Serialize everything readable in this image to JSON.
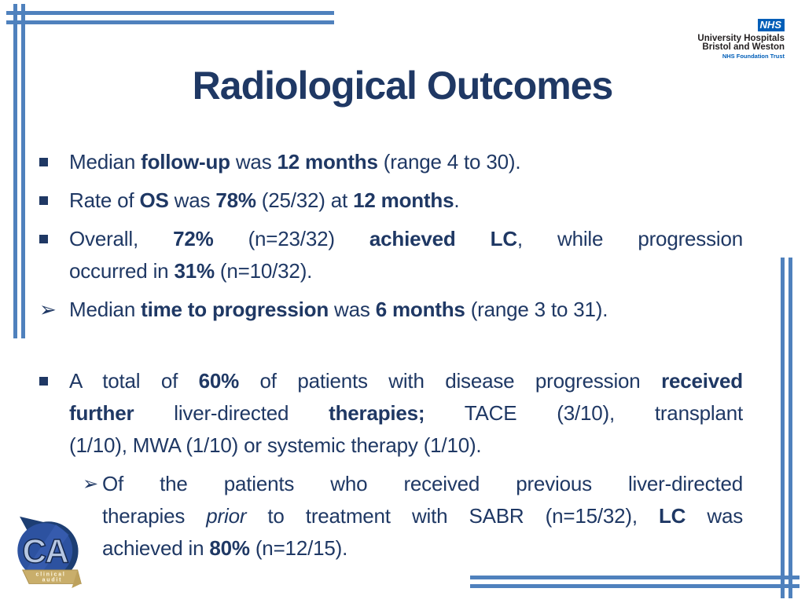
{
  "colors": {
    "text_navy": "#1f3864",
    "line_blue": "#4f81bd",
    "nhs_blue": "#005eb8",
    "ca_gold": "#c9ae6b"
  },
  "nhs_logo": {
    "nhs": "NHS",
    "org_line1": "University Hospitals",
    "org_line2": "Bristol and Weston",
    "trust": "NHS Foundation Trust"
  },
  "title": "Radiological Outcomes",
  "markers": {
    "square": "▪",
    "arrow": "➢"
  },
  "bullets": [
    {
      "marker": "square",
      "level": 1,
      "gap_before": false,
      "lines": [
        [
          {
            "t": "Median "
          },
          {
            "t": "follow-up",
            "b": true
          },
          {
            "t": " was "
          },
          {
            "t": "12 months",
            "b": true
          },
          {
            "t": " (range 4 to 30)."
          }
        ]
      ]
    },
    {
      "marker": "square",
      "level": 1,
      "gap_before": false,
      "lines": [
        [
          {
            "t": "Rate of "
          },
          {
            "t": "OS",
            "b": true
          },
          {
            "t": " was "
          },
          {
            "t": "78%",
            "b": true
          },
          {
            "t": " (25/32) at "
          },
          {
            "t": "12 months",
            "b": true
          },
          {
            "t": "."
          }
        ]
      ]
    },
    {
      "marker": "square",
      "level": 1,
      "gap_before": false,
      "lines": [
        [
          {
            "t": "Overall, "
          },
          {
            "t": "72%",
            "b": true
          },
          {
            "t": " (n=23/32) "
          },
          {
            "t": "achieved LC",
            "b": true
          },
          {
            "t": ", while progression"
          }
        ],
        [
          {
            "t": "occurred in "
          },
          {
            "t": "31%",
            "b": true
          },
          {
            "t": " (n=10/32)."
          }
        ]
      ]
    },
    {
      "marker": "arrow",
      "level": 1,
      "gap_before": false,
      "lines": [
        [
          {
            "t": "Median "
          },
          {
            "t": "time to progression",
            "b": true
          },
          {
            "t": " was "
          },
          {
            "t": "6 months",
            "b": true
          },
          {
            "t": " (range 3 to 31)."
          }
        ]
      ]
    },
    {
      "marker": "square",
      "level": 1,
      "gap_before": true,
      "lines": [
        [
          {
            "t": "A total of "
          },
          {
            "t": "60%",
            "b": true
          },
          {
            "t": " of patients with disease progression "
          },
          {
            "t": "received",
            "b": true
          }
        ],
        [
          {
            "t": "further",
            "b": true
          },
          {
            "t": " liver-directed "
          },
          {
            "t": "therapies;",
            "b": true
          },
          {
            "t": " TACE (3/10), transplant"
          }
        ],
        [
          {
            "t": "(1/10), MWA (1/10) or systemic therapy (1/10)."
          }
        ]
      ]
    },
    {
      "marker": "arrow",
      "level": 2,
      "gap_before": false,
      "lines": [
        [
          {
            "t": "Of the patients who received previous liver-directed"
          }
        ],
        [
          {
            "t": "therapies "
          },
          {
            "t": "prior",
            "i": true
          },
          {
            "t": " to treatment with SABR (n=15/32), "
          },
          {
            "t": "LC",
            "b": true
          },
          {
            "t": " was"
          }
        ],
        [
          {
            "t": "achieved in "
          },
          {
            "t": "80%",
            "b": true
          },
          {
            "t": " (n=12/15)."
          }
        ]
      ]
    }
  ],
  "ca_logo": {
    "letters": "CA",
    "caption_line1": "clinical",
    "caption_line2": "audit"
  }
}
